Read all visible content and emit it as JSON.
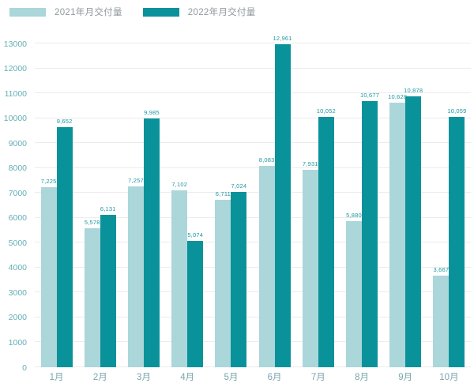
{
  "chart_data": {
    "type": "bar",
    "title": "",
    "xlabel": "",
    "ylabel": "",
    "categories": [
      "1月",
      "2月",
      "3月",
      "4月",
      "5月",
      "6月",
      "7月",
      "8月",
      "9月",
      "10月"
    ],
    "series": [
      {
        "name": "2021年月交付量",
        "color": "#abd6da",
        "values": [
          7225,
          5578,
          7257,
          7102,
          6711,
          8083,
          7931,
          5880,
          10628,
          3667
        ],
        "labels": [
          "7,225",
          "5,578",
          "7,257",
          "7,102",
          "6,711",
          "8,083",
          "7,931",
          "5,880",
          "10,628",
          "3,667"
        ]
      },
      {
        "name": "2022年月交付量",
        "color": "#0a929b",
        "values": [
          9652,
          6131,
          9985,
          5074,
          7024,
          12961,
          10052,
          10677,
          10878,
          10059
        ],
        "labels": [
          "9,652",
          "6,131",
          "9,985",
          "5,074",
          "7,024",
          "12,961",
          "10,052",
          "10,677",
          "10,878",
          "10,059"
        ]
      }
    ],
    "ylim": [
      0,
      13000
    ],
    "ytick_step": 1000,
    "yticks": [
      "0",
      "1000",
      "2000",
      "3000",
      "4000",
      "5000",
      "6000",
      "7000",
      "8000",
      "9000",
      "10000",
      "11000",
      "12000",
      "13000"
    ],
    "grid": true,
    "data_labels": true,
    "legend_position": "top-left"
  },
  "colors": {
    "background": "#ffffff",
    "gridline": "#ececec",
    "ytick_label": "#64aeb6",
    "xtick_label": "#79a6ac",
    "data_label": "#1e98a1",
    "legend_label": "#8f999c",
    "series_2021": "#abd6da",
    "series_2022": "#0a929b"
  }
}
